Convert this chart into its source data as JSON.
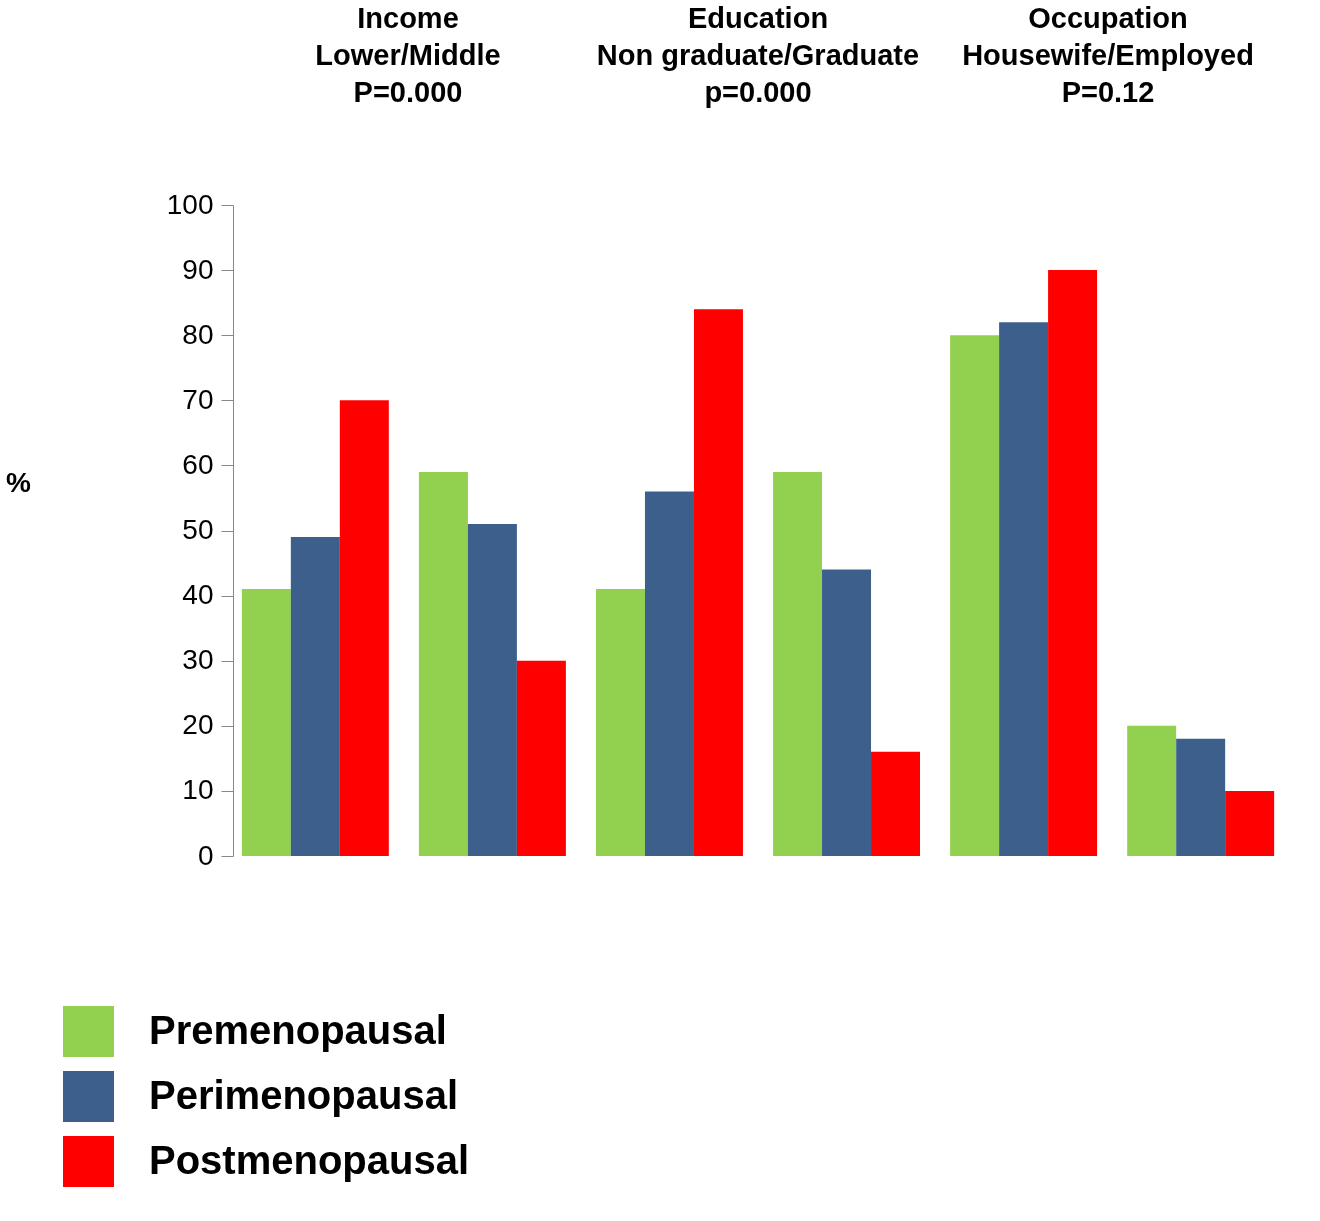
{
  "chart_data": {
    "type": "bar",
    "ylabel": "%",
    "categories": [
      null,
      null,
      null,
      null,
      null,
      null
    ],
    "series": [
      {
        "name": "Premenopausal",
        "color": "#92d050",
        "values": [
          41,
          59,
          41,
          59,
          80,
          20
        ]
      },
      {
        "name": "Perimenopausal",
        "color": "#3c5f8c",
        "values": [
          49,
          51,
          56,
          44,
          82,
          18
        ]
      },
      {
        "name": "Postmenopausal",
        "color": "#ff0000",
        "values": [
          70,
          30,
          84,
          16,
          90,
          10
        ]
      }
    ],
    "ylim": [
      0,
      100
    ],
    "yticks": [
      0,
      10,
      20,
      30,
      40,
      50,
      60,
      70,
      80,
      90,
      100
    ],
    "grid": false,
    "legend": "bottom left",
    "annotations": [
      "Income\nLower/Middle\nP=0.000",
      "Education\nNon graduate/Graduate\np=0.000",
      "Occupation\nHousewife/Employed\nP=0.12"
    ]
  }
}
